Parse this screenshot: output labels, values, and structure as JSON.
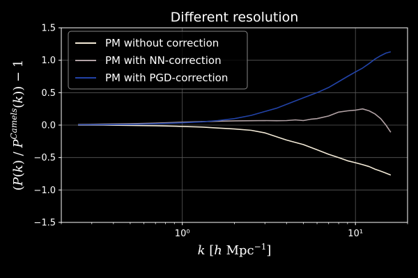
{
  "chart_data": {
    "type": "line",
    "title": "Different resolution",
    "xlabel": "k [h Mpc⁻¹]",
    "ylabel": "(P(k) / P^{Camels}(k)) − 1",
    "xscale": "log",
    "xlim": [
      0.2,
      20
    ],
    "ylim": [
      -1.5,
      1.5
    ],
    "grid": true,
    "legend_position": "top-left",
    "x_ticks": [
      1,
      10
    ],
    "x_tick_labels": [
      "10⁰",
      "10¹"
    ],
    "y_ticks": [
      -1.5,
      -1.0,
      -0.5,
      0.0,
      0.5,
      1.0,
      1.5
    ],
    "y_tick_labels": [
      "−1.5",
      "−1.0",
      "−0.5",
      "0.0",
      "0.5",
      "1.0",
      "1.5"
    ],
    "series": [
      {
        "name": "PM without correction",
        "color": "#f5ecd9",
        "x": [
          0.25,
          0.35,
          0.5,
          0.7,
          1.0,
          1.3,
          1.6,
          2.0,
          2.5,
          3.0,
          3.5,
          4.0,
          5.0,
          6.0,
          7.0,
          8.0,
          9.0,
          10.0,
          11.0,
          12.0,
          13.0,
          14.0,
          15.0,
          16.0
        ],
        "values": [
          0.0,
          0.0,
          -0.005,
          -0.01,
          -0.02,
          -0.03,
          -0.045,
          -0.06,
          -0.08,
          -0.12,
          -0.18,
          -0.23,
          -0.3,
          -0.38,
          -0.45,
          -0.5,
          -0.55,
          -0.58,
          -0.61,
          -0.64,
          -0.68,
          -0.71,
          -0.74,
          -0.77
        ]
      },
      {
        "name": "PM with NN-correction",
        "color": "#b3a3a6",
        "x": [
          0.25,
          0.35,
          0.5,
          0.7,
          1.0,
          1.3,
          1.6,
          2.0,
          2.5,
          3.0,
          3.5,
          4.0,
          4.5,
          5.0,
          5.5,
          6.0,
          7.0,
          8.0,
          9.0,
          10.0,
          11.0,
          12.0,
          13.0,
          14.0,
          15.0,
          16.0
        ],
        "values": [
          0.01,
          0.015,
          0.02,
          0.03,
          0.045,
          0.055,
          0.06,
          0.065,
          0.068,
          0.07,
          0.068,
          0.07,
          0.08,
          0.07,
          0.09,
          0.1,
          0.14,
          0.2,
          0.22,
          0.23,
          0.25,
          0.22,
          0.17,
          0.1,
          0.0,
          -0.11
        ]
      },
      {
        "name": "PM with PGD-correction",
        "color": "#2243a8",
        "x": [
          0.25,
          0.35,
          0.5,
          0.7,
          1.0,
          1.3,
          1.6,
          2.0,
          2.5,
          3.0,
          3.5,
          4.0,
          5.0,
          6.0,
          7.0,
          8.0,
          9.0,
          10.0,
          11.0,
          12.0,
          13.0,
          14.0,
          15.0,
          16.0
        ],
        "values": [
          0.005,
          0.008,
          0.012,
          0.02,
          0.035,
          0.05,
          0.07,
          0.1,
          0.15,
          0.21,
          0.26,
          0.32,
          0.42,
          0.5,
          0.58,
          0.67,
          0.75,
          0.82,
          0.88,
          0.95,
          1.02,
          1.07,
          1.11,
          1.13
        ]
      }
    ]
  }
}
